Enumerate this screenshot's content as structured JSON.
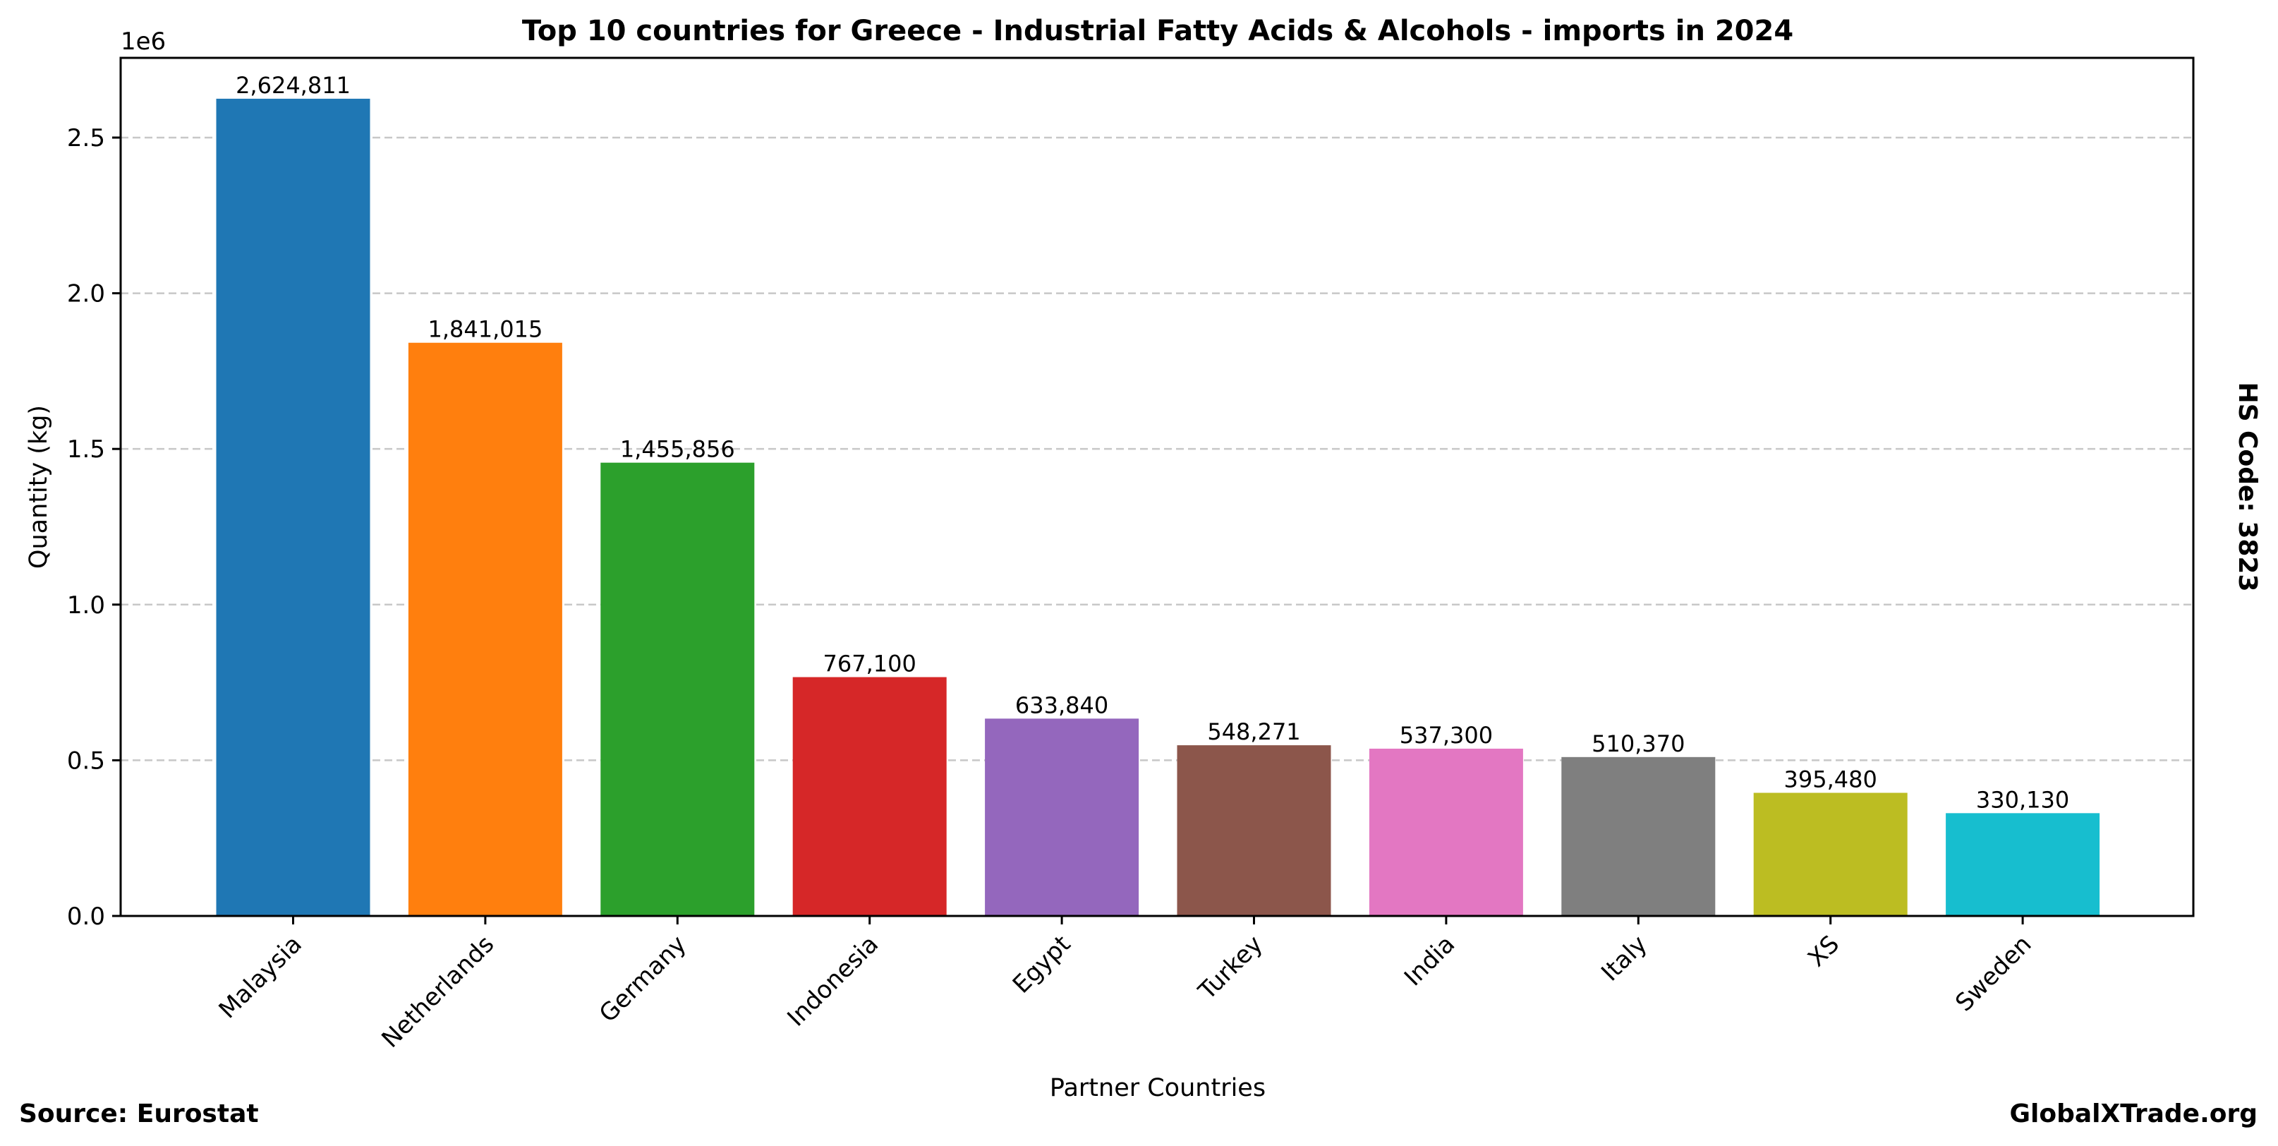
{
  "chart_data": {
    "type": "bar",
    "title": "Top 10 countries for Greece - Industrial Fatty Acids & Alcohols - imports in 2024",
    "xlabel": "Partner Countries",
    "ylabel": "Quantity (kg)",
    "y_offset_label": "1e6",
    "side_note": "HS Code: 3823",
    "source": "Source: Eurostat",
    "brand": "GlobalXTrade.org",
    "categories": [
      "Malaysia",
      "Netherlands",
      "Germany",
      "Indonesia",
      "Egypt",
      "Turkey",
      "India",
      "Italy",
      "XS",
      "Sweden"
    ],
    "values": [
      2624811,
      1841015,
      1455856,
      767100,
      633840,
      548271,
      537300,
      510370,
      395480,
      330130
    ],
    "value_labels": [
      "2,624,811",
      "1,841,015",
      "1,455,856",
      "767,100",
      "633,840",
      "548,271",
      "537,300",
      "510,370",
      "395,480",
      "330,130"
    ],
    "colors": [
      "#1f77b4",
      "#ff7f0e",
      "#2ca02c",
      "#d62728",
      "#9467bd",
      "#8c564b",
      "#e377c2",
      "#7f7f7f",
      "#bcbd22",
      "#17becf"
    ],
    "yticks": [
      0,
      500000,
      1000000,
      1500000,
      2000000,
      2500000
    ],
    "ytick_labels": [
      "0.0",
      "0.5",
      "1.0",
      "1.5",
      "2.0",
      "2.5"
    ],
    "ylim": [
      0,
      2756052
    ],
    "grid": "horizontal dashed",
    "legend": "none"
  }
}
